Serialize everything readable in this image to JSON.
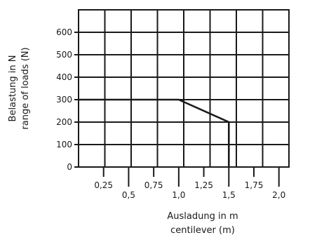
{
  "chart_data": {
    "type": "line",
    "title": "",
    "xlabel": [
      "Ausladung in m",
      "centilever (m)"
    ],
    "ylabel": [
      "Belastung in N",
      "range of loads (N)"
    ],
    "xlim": [
      0,
      2.1
    ],
    "ylim": [
      0,
      700
    ],
    "x_ticks": [
      {
        "value": 0.25,
        "label": "0,25"
      },
      {
        "value": 0.5,
        "label": "0,5"
      },
      {
        "value": 0.75,
        "label": "0,75"
      },
      {
        "value": 1.0,
        "label": "1,0"
      },
      {
        "value": 1.25,
        "label": "1,25"
      },
      {
        "value": 1.5,
        "label": "1,5"
      },
      {
        "value": 1.75,
        "label": "1,75"
      },
      {
        "value": 2.0,
        "label": "2,0"
      }
    ],
    "y_ticks": [
      {
        "value": 0,
        "label": "0"
      },
      {
        "value": 100,
        "label": "100"
      },
      {
        "value": 200,
        "label": "200"
      },
      {
        "value": 300,
        "label": "300"
      },
      {
        "value": 400,
        "label": "400"
      },
      {
        "value": 500,
        "label": "500"
      },
      {
        "value": 600,
        "label": "600"
      }
    ],
    "grid": true,
    "series": [
      {
        "x": [
          0,
          1.0,
          1.5,
          1.5
        ],
        "y": [
          300,
          300,
          200,
          0
        ]
      }
    ]
  }
}
